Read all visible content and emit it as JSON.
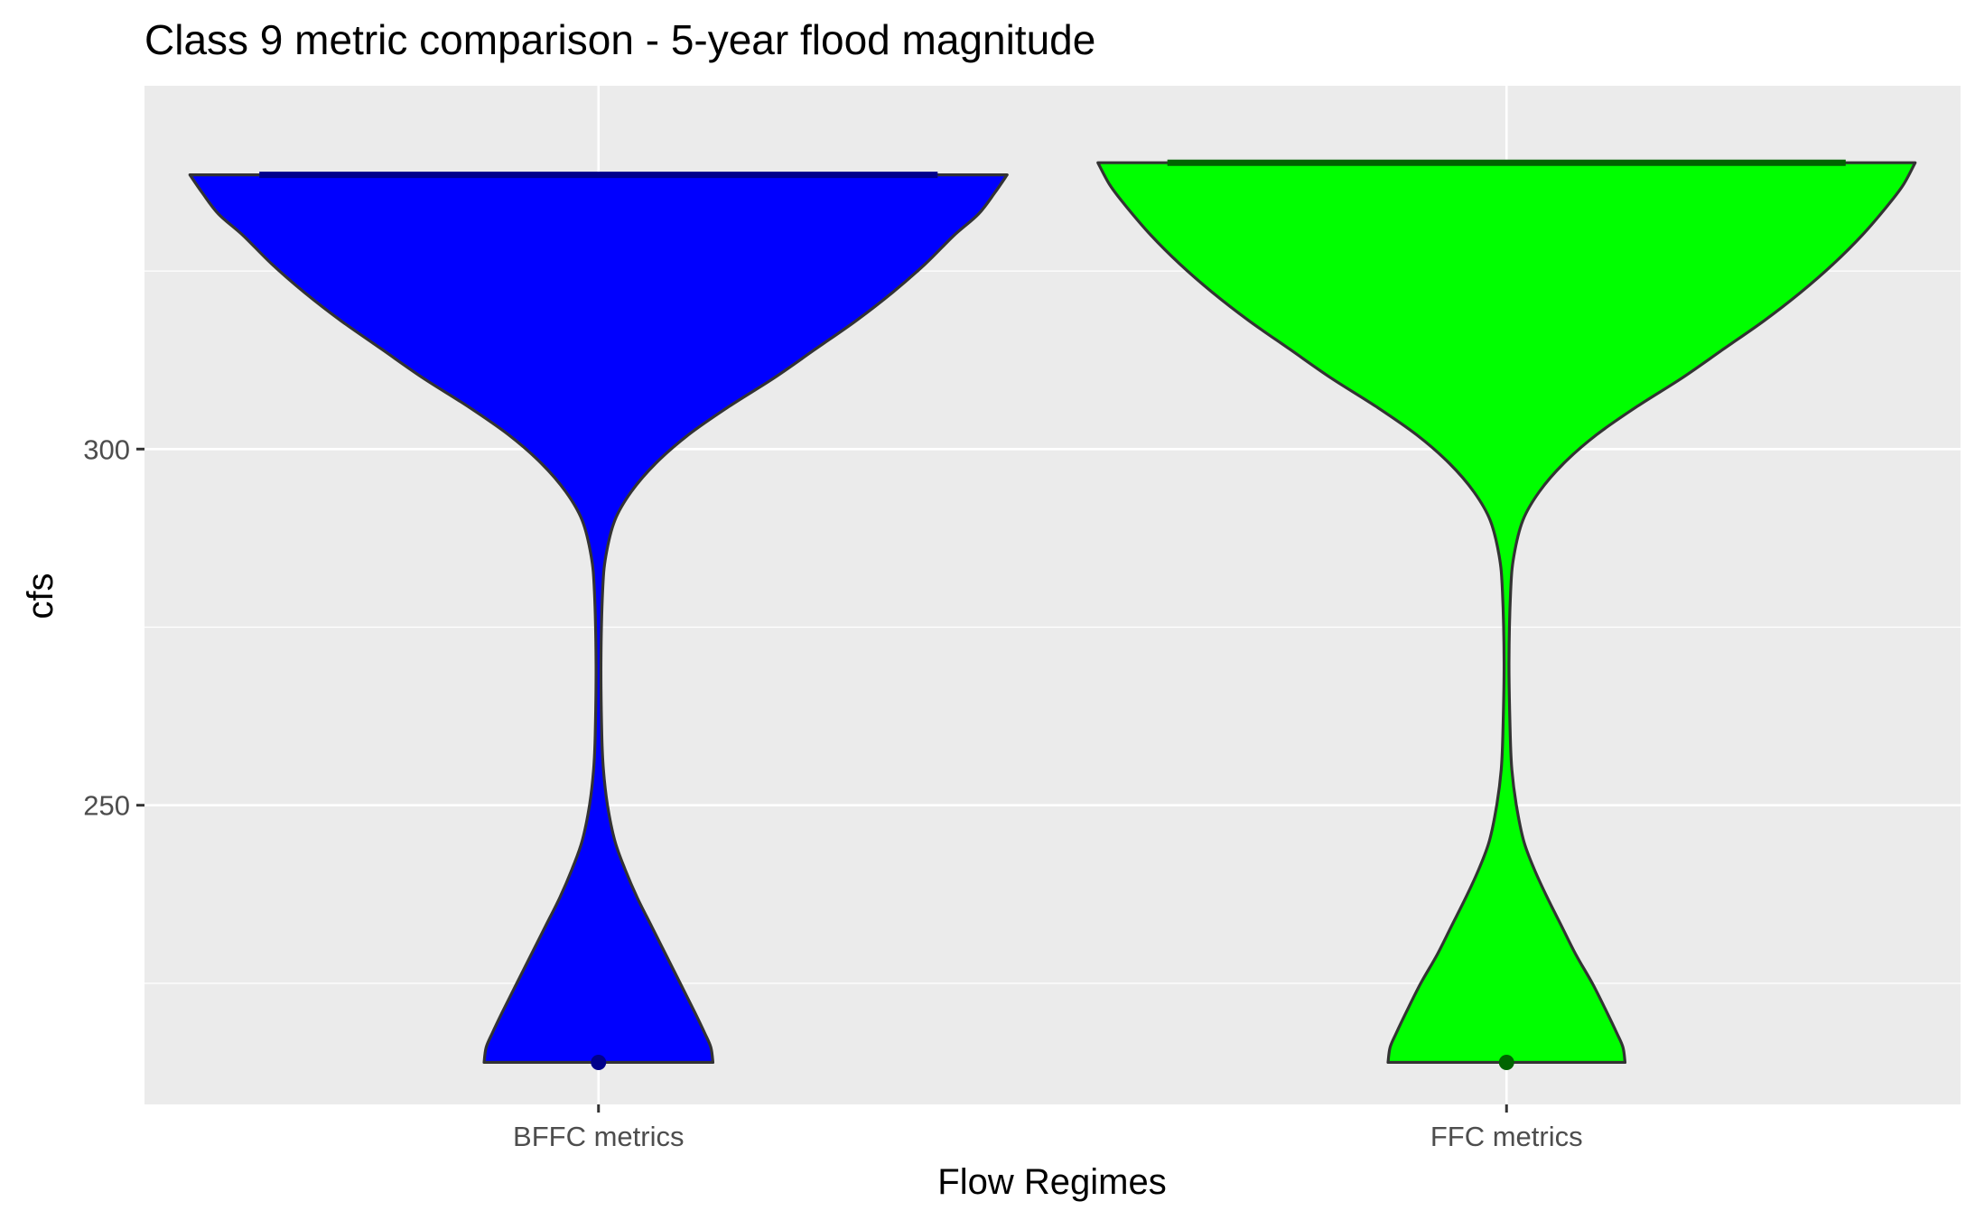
{
  "chart_data": {
    "type": "violin",
    "title": "Class 9 metric comparison - 5-year flood magnitude",
    "xlabel": "Flow Regimes",
    "ylabel": "cfs",
    "categories": [
      "BFFC metrics",
      "FFC metrics"
    ],
    "ylim": [
      208,
      351
    ],
    "y_ticks": [
      250,
      300
    ],
    "y_minor_ticks": [
      225,
      275,
      325
    ],
    "grid": true,
    "legend": "none",
    "colors": {
      "panel_background": "#ebebeb",
      "grid": "#ffffff",
      "outline": "#333333",
      "tick": "#333333"
    },
    "series": [
      {
        "category": "BFFC metrics",
        "fill": "#0000ff",
        "marker_color": "#00008b",
        "y_max": 338.5,
        "y_min": 213.9,
        "y_max_marker": 338.5,
        "y_min_marker": 213.9,
        "density_profile": [
          [
            213.9,
            0.28
          ],
          [
            216,
            0.275
          ],
          [
            218,
            0.26
          ],
          [
            221,
            0.235
          ],
          [
            225,
            0.2
          ],
          [
            229,
            0.165
          ],
          [
            233,
            0.13
          ],
          [
            237,
            0.095
          ],
          [
            241,
            0.065
          ],
          [
            245,
            0.04
          ],
          [
            250,
            0.022
          ],
          [
            255,
            0.012
          ],
          [
            260,
            0.008
          ],
          [
            270,
            0.006
          ],
          [
            280,
            0.01
          ],
          [
            285,
            0.018
          ],
          [
            290,
            0.04
          ],
          [
            294,
            0.08
          ],
          [
            298,
            0.14
          ],
          [
            302,
            0.22
          ],
          [
            306,
            0.32
          ],
          [
            310,
            0.43
          ],
          [
            314,
            0.53
          ],
          [
            318,
            0.63
          ],
          [
            322,
            0.72
          ],
          [
            326,
            0.8
          ],
          [
            330,
            0.87
          ],
          [
            333,
            0.93
          ],
          [
            336,
            0.97
          ],
          [
            338.5,
            1.0
          ]
        ]
      },
      {
        "category": "FFC metrics",
        "fill": "#00ff00",
        "marker_color": "#006400",
        "y_max": 340.2,
        "y_min": 213.9,
        "y_max_marker": 340.2,
        "y_min_marker": 213.9,
        "density_profile": [
          [
            213.9,
            0.29
          ],
          [
            216,
            0.285
          ],
          [
            218,
            0.27
          ],
          [
            221,
            0.245
          ],
          [
            225,
            0.21
          ],
          [
            229,
            0.17
          ],
          [
            233,
            0.135
          ],
          [
            237,
            0.1
          ],
          [
            241,
            0.068
          ],
          [
            245,
            0.042
          ],
          [
            250,
            0.024
          ],
          [
            255,
            0.013
          ],
          [
            260,
            0.009
          ],
          [
            270,
            0.006
          ],
          [
            280,
            0.01
          ],
          [
            285,
            0.018
          ],
          [
            290,
            0.04
          ],
          [
            294,
            0.08
          ],
          [
            298,
            0.14
          ],
          [
            302,
            0.22
          ],
          [
            306,
            0.32
          ],
          [
            310,
            0.43
          ],
          [
            314,
            0.53
          ],
          [
            318,
            0.63
          ],
          [
            322,
            0.72
          ],
          [
            326,
            0.8
          ],
          [
            330,
            0.87
          ],
          [
            334,
            0.93
          ],
          [
            337,
            0.97
          ],
          [
            340.2,
            1.0
          ]
        ]
      }
    ]
  }
}
